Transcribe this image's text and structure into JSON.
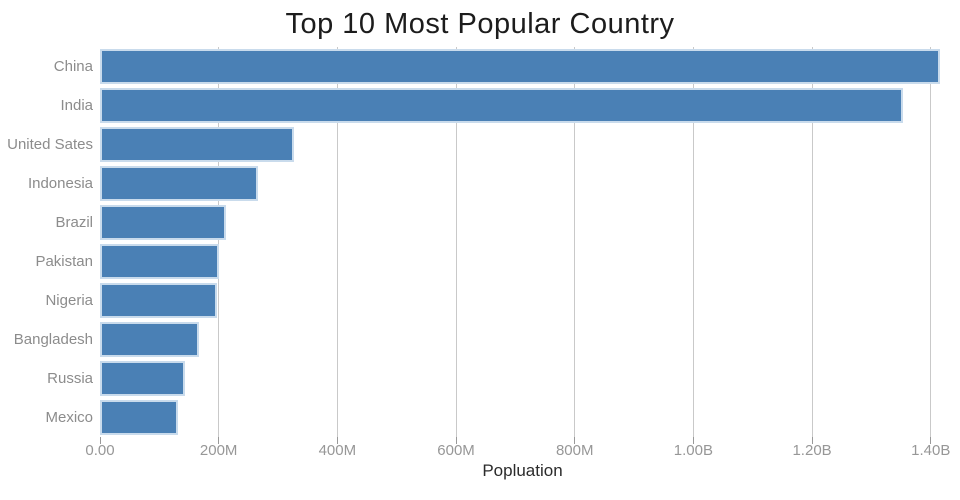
{
  "chart_data": {
    "type": "bar",
    "orientation": "horizontal",
    "title": "Top 10 Most Popular Country",
    "xlabel": "Popluation",
    "ylabel": "",
    "categories": [
      "China",
      "India",
      "United Sates",
      "Indonesia",
      "Brazil",
      "Pakistan",
      "Nigeria",
      "Bangladesh",
      "Russia",
      "Mexico"
    ],
    "values_millions": [
      1415,
      1353,
      327,
      266,
      212,
      201,
      197,
      166,
      144,
      131
    ],
    "x_ticks": [
      {
        "value_millions": 0,
        "label": "0.00"
      },
      {
        "value_millions": 200,
        "label": "200M"
      },
      {
        "value_millions": 400,
        "label": "400M"
      },
      {
        "value_millions": 600,
        "label": "600M"
      },
      {
        "value_millions": 800,
        "label": "800M"
      },
      {
        "value_millions": 1000,
        "label": "1.00B"
      },
      {
        "value_millions": 1200,
        "label": "1.20B"
      },
      {
        "value_millions": 1400,
        "label": "1.40B"
      }
    ],
    "xlim_millions": [
      0,
      1424
    ],
    "grid": true,
    "legend": false,
    "colors": {
      "bar_fill": "#4a80b5",
      "bar_edge": "#c9dbec",
      "gridline": "#c9c9c9",
      "tick": "#999999",
      "tick_label": "#979797",
      "category_label": "#8c8c8c",
      "title": "#1c1c1c",
      "xlabel": "#2b2b2b",
      "background": "#ffffff"
    }
  }
}
